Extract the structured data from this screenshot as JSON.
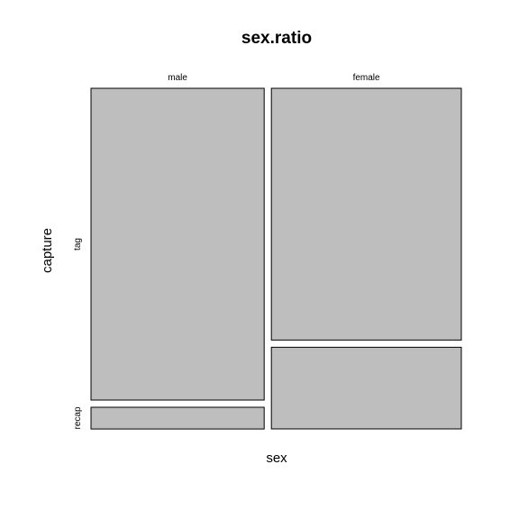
{
  "chart_data": {
    "type": "mosaic",
    "title": "sex.ratio",
    "xlabel": "sex",
    "ylabel": "capture",
    "x_categories": [
      "male",
      "female"
    ],
    "y_categories": [
      "tag",
      "recap"
    ],
    "x_proportions": [
      0.477,
      0.523
    ],
    "conditional_proportions": {
      "male": {
        "tag": 0.935,
        "recap": 0.065
      },
      "female": {
        "tag": 0.755,
        "recap": 0.245
      }
    },
    "fill_color": "#bebebe",
    "border_color": "#000000"
  }
}
